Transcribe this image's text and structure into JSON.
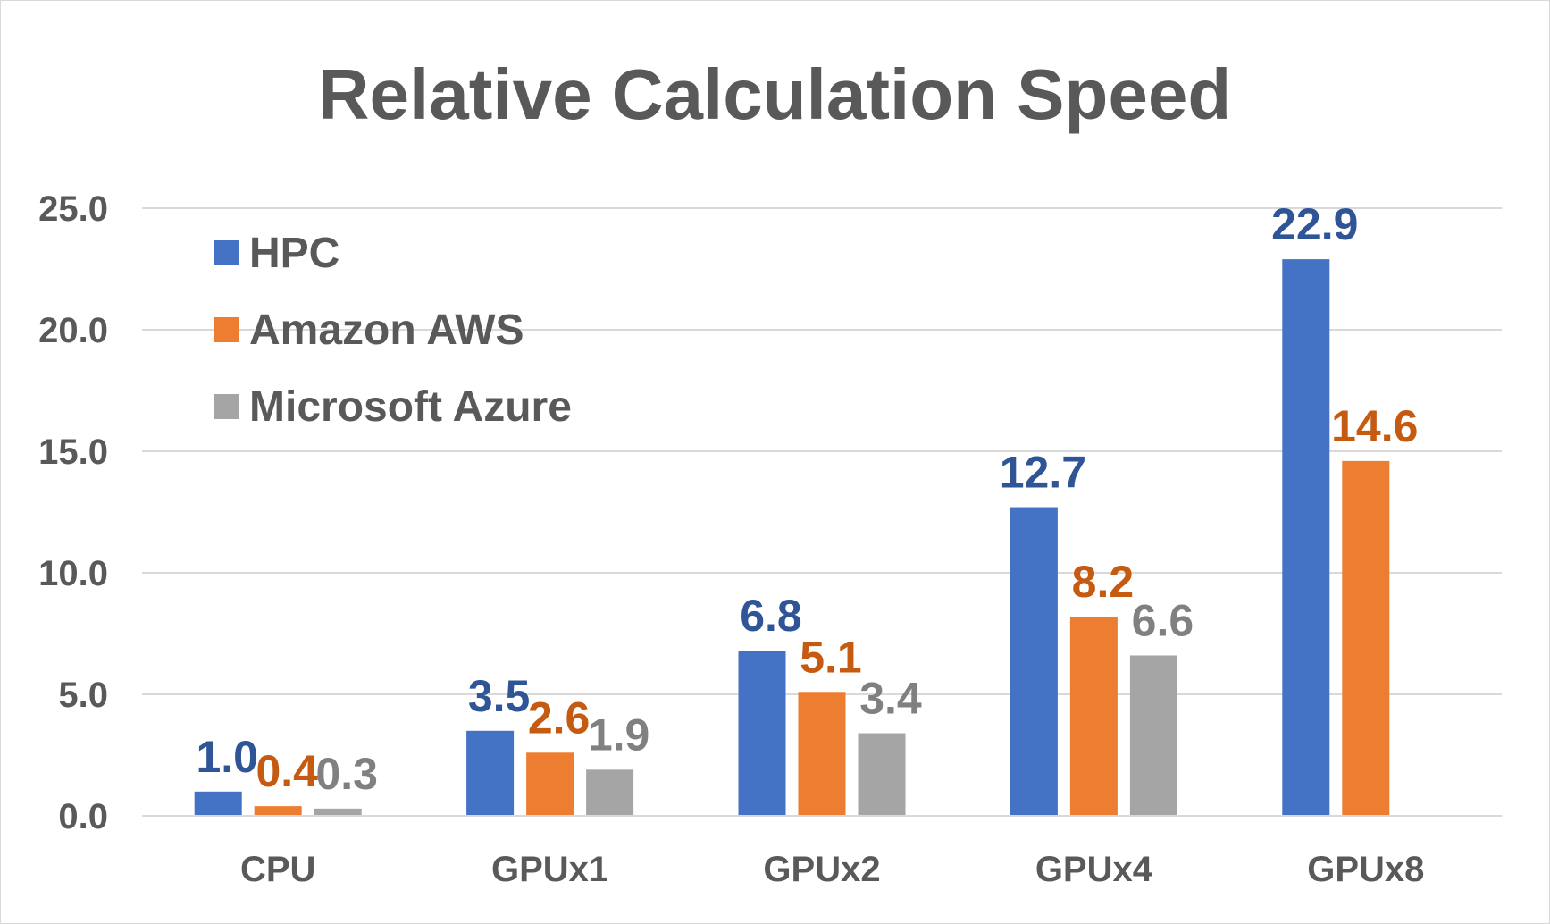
{
  "chart_data": {
    "type": "bar",
    "title": "Relative Calculation Speed",
    "xlabel": "",
    "ylabel": "",
    "categories": [
      "CPU",
      "GPUx1",
      "GPUx2",
      "GPUx4",
      "GPUx8"
    ],
    "yticks": [
      "0.0",
      "5.0",
      "10.0",
      "15.0",
      "20.0",
      "25.0"
    ],
    "ylim": [
      0,
      25
    ],
    "grid": true,
    "legend_position": "top-left",
    "series": [
      {
        "name": "HPC",
        "color": "#4472C4",
        "label_color": "#2F5597",
        "values": [
          1.0,
          3.5,
          6.8,
          12.7,
          22.9
        ],
        "labels": [
          "1.0",
          "3.5",
          "6.8",
          "12.7",
          "22.9"
        ]
      },
      {
        "name": "Amazon AWS",
        "color": "#ED7D31",
        "label_color": "#C55A11",
        "values": [
          0.4,
          2.6,
          5.1,
          8.2,
          14.6
        ],
        "labels": [
          "0.4",
          "2.6",
          "5.1",
          "8.2",
          "14.6"
        ]
      },
      {
        "name": "Microsoft Azure",
        "color": "#A5A5A5",
        "label_color": "#808080",
        "values": [
          0.3,
          1.9,
          3.4,
          6.6,
          null
        ],
        "labels": [
          "0.3",
          "1.9",
          "3.4",
          "6.6",
          ""
        ]
      }
    ]
  }
}
